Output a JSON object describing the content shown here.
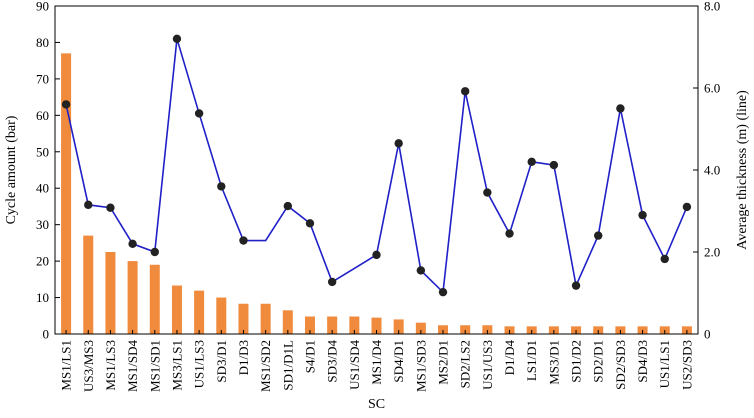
{
  "chart_data": {
    "type": "bar",
    "title": "",
    "xlabel": "SC",
    "ylabel": "Cycle amount (bar)",
    "y2label": "Average thickness (m) (line)",
    "ylim": [
      0,
      90
    ],
    "yticks": [
      0,
      10,
      20,
      30,
      40,
      50,
      60,
      70,
      80,
      90
    ],
    "y2lim": [
      0,
      8.0
    ],
    "y2ticks": [
      "0",
      "2.0",
      "4.0",
      "6.0",
      "8.0"
    ],
    "y2tick_values": [
      0,
      2,
      4,
      6,
      8
    ],
    "grid": false,
    "bar_color": "#f08a3c",
    "line_color": "#2020c8",
    "marker_color": "#222222",
    "categories": [
      "MS1/LS1",
      "US3/MS3",
      "MS1/LS3",
      "MS1/SD4",
      "MS1/SD1",
      "MS3/LS1",
      "US1/LS3",
      "SD3/D1",
      "D1/D3",
      "MS1/SD2",
      "SD1/D1L",
      "S4/D1",
      "SD3/D4",
      "US1/SD4",
      "MS1/D4",
      "SD4/D1",
      "MS1/SD3",
      "MS2/D1",
      "SD2/LS2",
      "US1/US3",
      "D1/D4",
      "LS1/D1",
      "MS3/D1",
      "SD1/D2",
      "SD2/D1",
      "SD2/SD3",
      "SD4/D3",
      "US1/LS1",
      "US2/SD3"
    ],
    "series": [
      {
        "axis": "left",
        "kind": "bar",
        "values": [
          77,
          27,
          22.5,
          20,
          19,
          13.3,
          11.9,
          10,
          8.3,
          8.3,
          6.5,
          4.8,
          4.8,
          4.8,
          4.5,
          4,
          3.1,
          2.4,
          2.4,
          2.4,
          2.1,
          2.1,
          2.1,
          2.1,
          2.1,
          2.1,
          2.1,
          2.1,
          2.1
        ]
      },
      {
        "axis": "right",
        "kind": "line",
        "values": [
          5.6,
          3.15,
          3.08,
          2.2,
          2.0,
          7.2,
          5.38,
          3.6,
          2.28,
          null,
          3.12,
          2.7,
          1.27,
          null,
          1.93,
          4.65,
          1.55,
          1.02,
          5.92,
          3.45,
          2.45,
          4.2,
          4.12,
          1.18,
          2.4,
          5.5,
          2.9,
          1.83,
          3.1
        ],
        "line_values": [
          5.6,
          3.15,
          3.08,
          2.2,
          2.0,
          7.2,
          5.38,
          3.6,
          2.28,
          2.28,
          3.12,
          2.7,
          1.27,
          1.6,
          1.93,
          4.65,
          1.55,
          1.02,
          5.92,
          3.45,
          2.45,
          4.2,
          4.12,
          1.18,
          2.4,
          5.5,
          2.9,
          1.83,
          3.1
        ]
      }
    ]
  }
}
